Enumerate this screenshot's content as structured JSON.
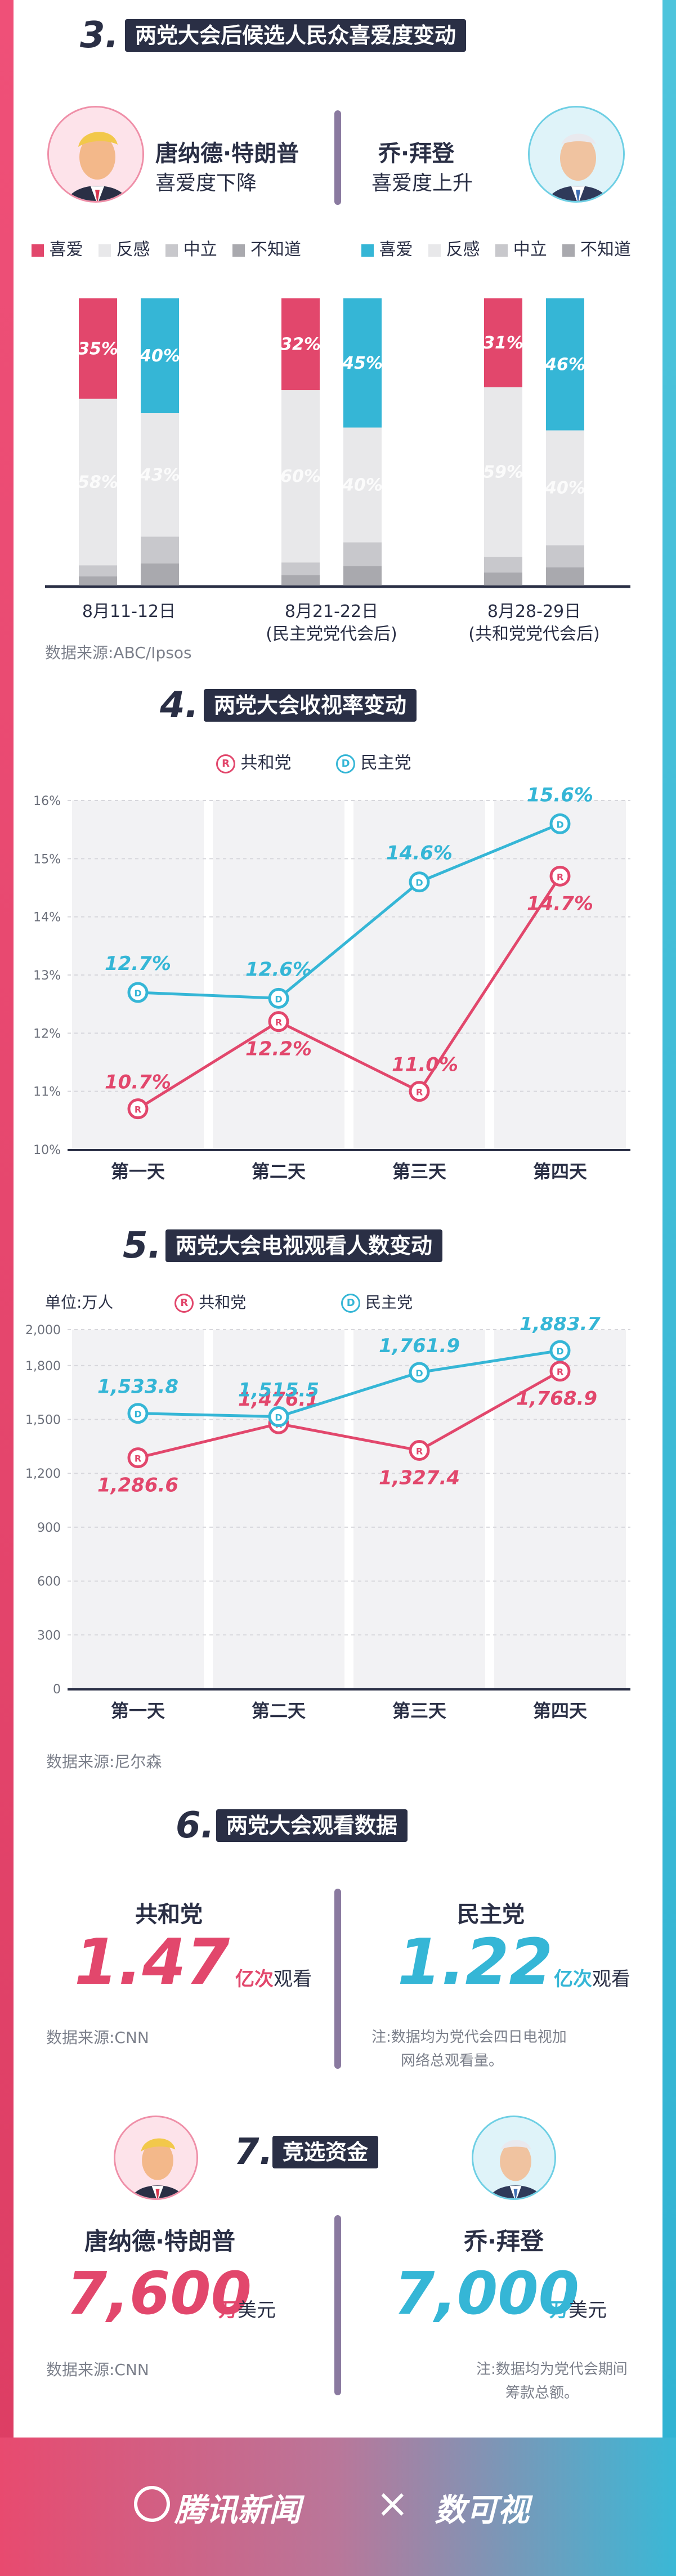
{
  "colors": {
    "rep": "#e2476c",
    "dem": "#35b6d6",
    "dark": "#2a2f45",
    "neg": "#e8e8ea",
    "neu": "#c8c8cc",
    "unk": "#a9a9ae"
  },
  "sec3": {
    "num": "3.",
    "title": "两党大会后候选人民众喜爱度变动",
    "trump_name": "唐纳德·特朗普",
    "trump_sub": "喜爱度下降",
    "biden_name": "乔·拜登",
    "biden_sub": "喜爱度上升",
    "legend_left": [
      "喜爱",
      "反感",
      "中立",
      "不知道"
    ],
    "legend_right": [
      "喜爱",
      "反感",
      "中立",
      "不知道"
    ],
    "source": "数据来源:ABC/Ipsos"
  },
  "sec4": {
    "num": "4.",
    "title": "两党大会收视率变动",
    "legend_rep": "共和党",
    "legend_dem": "民主党"
  },
  "sec5": {
    "num": "5.",
    "title": "两党大会电视观看人数变动",
    "unit": "单位:万人",
    "legend_rep": "共和党",
    "legend_dem": "民主党",
    "source": "数据来源:尼尔森"
  },
  "sec6": {
    "num": "6.",
    "title": "两党大会观看数据",
    "rep_label": "共和党",
    "rep_value": "1.47",
    "rep_unit": "亿次",
    "rep_unit2": "观看",
    "dem_label": "民主党",
    "dem_value": "1.22",
    "dem_unit": "亿次",
    "dem_unit2": "观看",
    "source": "数据来源:CNN",
    "note_line1": "注:数据均为党代会四日电视加",
    "note_line2": "网络总观看量。"
  },
  "sec7": {
    "num": "7.",
    "title": "竞选资金",
    "trump_name": "唐纳德·特朗普",
    "trump_value": "7,600",
    "trump_unit": "万",
    "trump_unit2": "美元",
    "biden_name": "乔·拜登",
    "biden_value": "7,000",
    "biden_unit": "万",
    "biden_unit2": "美元",
    "source": "数据来源:CNN",
    "note_line1": "注:数据均为党代会期间",
    "note_line2": "筹款总额。"
  },
  "footer": {
    "brand": "腾讯新闻",
    "x": "×",
    "partner": "数可视"
  },
  "chart_data": [
    {
      "type": "bar",
      "title": "两党大会后候选人民众喜爱度变动",
      "categories": [
        "8月11-12日",
        "8月21-22日",
        "8月28-29日"
      ],
      "category_sub": [
        "",
        "(民主党党代会后)",
        "(共和党党代会后)"
      ],
      "series": [
        {
          "name": "特朗普 喜爱",
          "values": [
            35,
            32,
            31
          ]
        },
        {
          "name": "特朗普 反感",
          "values": [
            58,
            60,
            59
          ]
        },
        {
          "name": "拜登 喜爱",
          "values": [
            40,
            45,
            46
          ]
        },
        {
          "name": "拜登 反感",
          "values": [
            43,
            40,
            40
          ]
        }
      ],
      "ylim": [
        0,
        100
      ]
    },
    {
      "type": "line",
      "title": "两党大会收视率变动",
      "categories": [
        "第一天",
        "第二天",
        "第三天",
        "第四天"
      ],
      "y_ticks": [
        "10%",
        "11%",
        "12%",
        "13%",
        "14%",
        "15%",
        "16%"
      ],
      "ylim": [
        10,
        16
      ],
      "series": [
        {
          "name": "共和党",
          "values": [
            10.7,
            12.2,
            11.0,
            14.7
          ],
          "labels": [
            "10.7%",
            "12.2%",
            "11.0%",
            "14.7%"
          ]
        },
        {
          "name": "民主党",
          "values": [
            12.7,
            12.6,
            14.6,
            15.6
          ],
          "labels": [
            "12.7%",
            "12.6%",
            "14.6%",
            "15.6%"
          ]
        }
      ]
    },
    {
      "type": "line",
      "title": "两党大会电视观看人数变动",
      "categories": [
        "第一天",
        "第二天",
        "第三天",
        "第四天"
      ],
      "y_ticks": [
        "0",
        "300",
        "600",
        "900",
        "1,200",
        "1,500",
        "1,800",
        "2,000"
      ],
      "ylim": [
        0,
        2000
      ],
      "series": [
        {
          "name": "共和党",
          "values": [
            1286.6,
            1476.1,
            1327.4,
            1768.9
          ],
          "labels": [
            "1,286.6",
            "1,476.1",
            "1,327.4",
            "1,768.9"
          ]
        },
        {
          "name": "民主党",
          "values": [
            1533.8,
            1515.5,
            1761.9,
            1883.7
          ],
          "labels": [
            "1,533.8",
            "1,515.5",
            "1,761.9",
            "1,883.7"
          ]
        }
      ]
    }
  ]
}
